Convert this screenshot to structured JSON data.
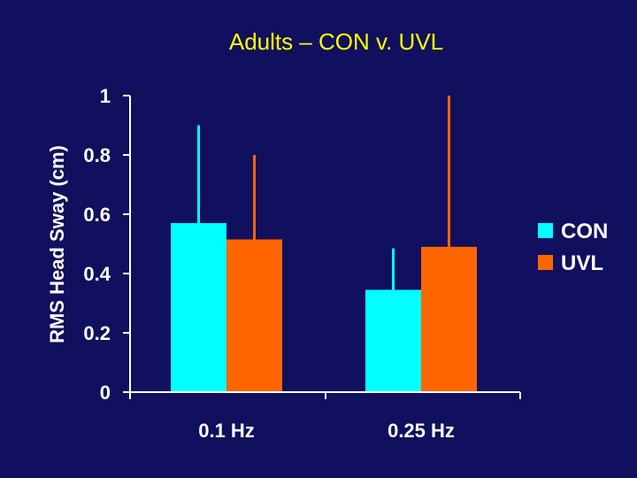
{
  "chart_data": {
    "type": "bar",
    "title": "Adults – CON v. UVL",
    "ylabel": "RMS Head Sway (cm)",
    "xlabel": "",
    "ylim": [
      0,
      1
    ],
    "yticks": [
      "0",
      "0.2",
      "0.4",
      "0.6",
      "0.8",
      "1"
    ],
    "categories": [
      "0.1 Hz",
      "0.25 Hz"
    ],
    "series": [
      {
        "name": "CON",
        "color": "#00ffff",
        "values": [
          0.57,
          0.345
        ],
        "error_upper": [
          0.9,
          0.485
        ]
      },
      {
        "name": "UVL",
        "color": "#ff6600",
        "values": [
          0.515,
          0.49
        ],
        "error_upper": [
          0.8,
          1.0
        ]
      }
    ],
    "legend_position": "right",
    "grid": false
  }
}
